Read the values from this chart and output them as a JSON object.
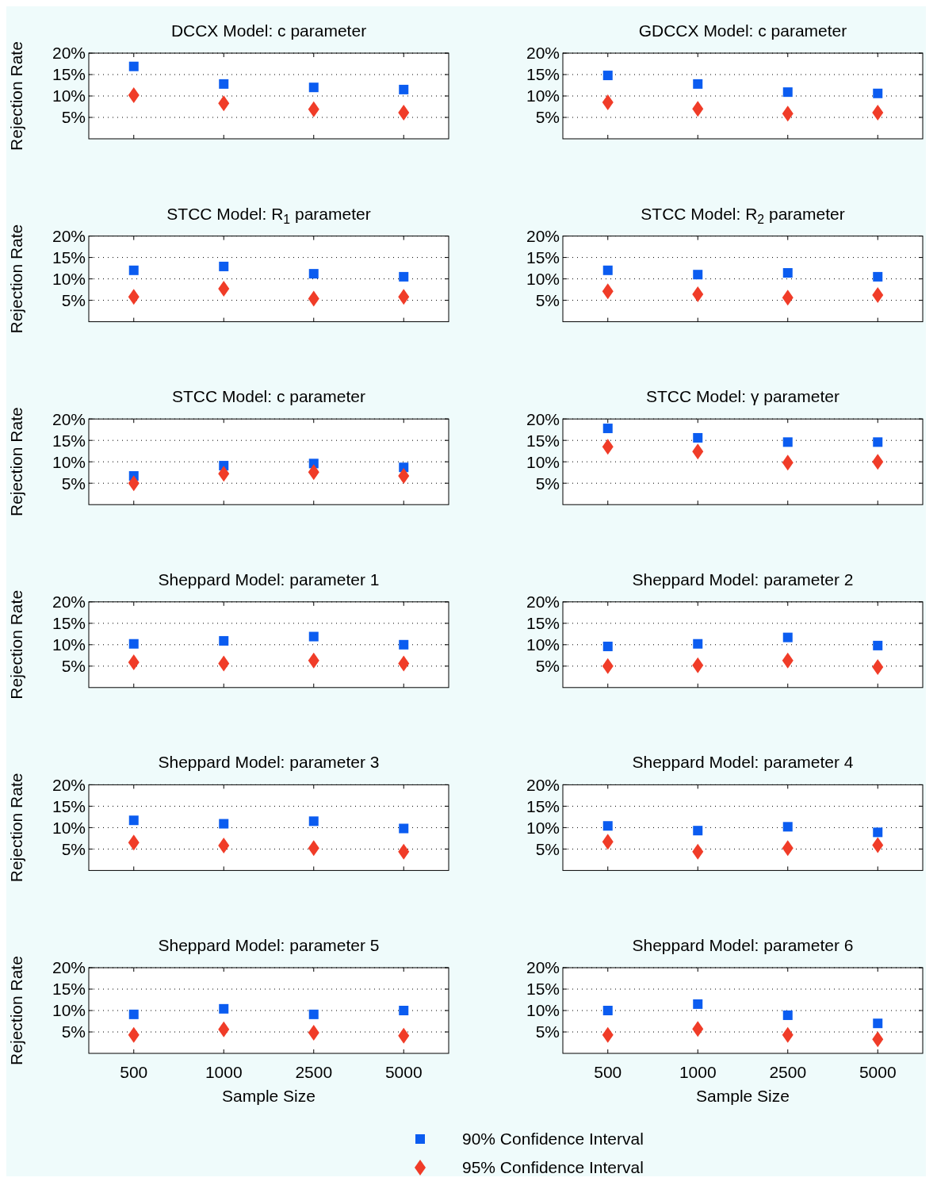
{
  "chart_data": [
    {
      "type": "scatter",
      "title": "DCCX Model: c parameter",
      "ylabel": "Rejection Rate",
      "categories": [
        "500",
        "1000",
        "2500",
        "5000"
      ],
      "ylim": [
        0,
        20
      ],
      "yticks": [
        {
          "value": 5,
          "label": "5%"
        },
        {
          "value": 10,
          "label": "10%"
        },
        {
          "value": 15,
          "label": "15%"
        },
        {
          "value": 20,
          "label": "20%"
        }
      ],
      "grid": "y",
      "tick_labels": "y",
      "legend": "bottom",
      "series": [
        {
          "name": "90% Confidence Interval",
          "color": "#0b5cf0",
          "marker": "square",
          "values": [
            16.9,
            12.8,
            12.0,
            11.5
          ]
        },
        {
          "name": "95% Confidence Interval",
          "color": "#f03c28",
          "marker": "diamond",
          "values": [
            10.2,
            8.3,
            6.9,
            6.1
          ]
        }
      ]
    },
    {
      "type": "scatter",
      "title": "GDCCX Model: c parameter",
      "categories": [
        "500",
        "1000",
        "2500",
        "5000"
      ],
      "ylim": [
        0,
        20
      ],
      "yticks": [
        {
          "value": 5,
          "label": "5%"
        },
        {
          "value": 10,
          "label": "10%"
        },
        {
          "value": 15,
          "label": "15%"
        },
        {
          "value": 20,
          "label": "20%"
        }
      ],
      "grid": "y",
      "tick_labels": "y",
      "series": [
        {
          "color": "#0b5cf0",
          "marker": "square",
          "values": [
            14.8,
            12.8,
            10.9,
            10.6
          ]
        },
        {
          "color": "#f03c28",
          "marker": "diamond",
          "values": [
            8.5,
            7.0,
            5.9,
            6.1
          ]
        }
      ]
    },
    {
      "type": "scatter",
      "title": "STCC Model: R$_{1}$ parameter",
      "ylabel": "Rejection Rate",
      "categories": [
        "500",
        "1000",
        "2500",
        "5000"
      ],
      "ylim": [
        0,
        20
      ],
      "yticks": [
        {
          "value": 5,
          "label": "5%"
        },
        {
          "value": 10,
          "label": "10%"
        },
        {
          "value": 15,
          "label": "15%"
        },
        {
          "value": 20,
          "label": "20%"
        }
      ],
      "grid": "y",
      "tick_labels": "y",
      "series": [
        {
          "color": "#0b5cf0",
          "marker": "square",
          "values": [
            12.0,
            12.9,
            11.2,
            10.5
          ]
        },
        {
          "color": "#f03c28",
          "marker": "diamond",
          "values": [
            5.8,
            7.7,
            5.4,
            5.8
          ]
        }
      ]
    },
    {
      "type": "scatter",
      "title": "STCC Model: R$_{2}$ parameter",
      "categories": [
        "500",
        "1000",
        "2500",
        "5000"
      ],
      "ylim": [
        0,
        20
      ],
      "yticks": [
        {
          "value": 5,
          "label": "5%"
        },
        {
          "value": 10,
          "label": "10%"
        },
        {
          "value": 15,
          "label": "15%"
        },
        {
          "value": 20,
          "label": "20%"
        }
      ],
      "grid": "y",
      "tick_labels": "y",
      "series": [
        {
          "color": "#0b5cf0",
          "marker": "square",
          "values": [
            12.0,
            11.0,
            11.4,
            10.5
          ]
        },
        {
          "color": "#f03c28",
          "marker": "diamond",
          "values": [
            7.1,
            6.4,
            5.6,
            6.2
          ]
        }
      ]
    },
    {
      "type": "scatter",
      "title": "STCC Model: c parameter",
      "ylabel": "Rejection Rate",
      "categories": [
        "500",
        "1000",
        "2500",
        "5000"
      ],
      "ylim": [
        0,
        20
      ],
      "yticks": [
        {
          "value": 5,
          "label": "5%"
        },
        {
          "value": 10,
          "label": "10%"
        },
        {
          "value": 15,
          "label": "15%"
        },
        {
          "value": 20,
          "label": "20%"
        }
      ],
      "grid": "y",
      "tick_labels": "y",
      "series": [
        {
          "color": "#0b5cf0",
          "marker": "square",
          "values": [
            6.7,
            9.1,
            9.6,
            8.7
          ]
        },
        {
          "color": "#f03c28",
          "marker": "diamond",
          "values": [
            5.0,
            7.2,
            7.6,
            6.7
          ]
        }
      ]
    },
    {
      "type": "scatter",
      "title": "STCC Model: γ parameter",
      "categories": [
        "500",
        "1000",
        "2500",
        "5000"
      ],
      "ylim": [
        0,
        20
      ],
      "yticks": [
        {
          "value": 5,
          "label": "5%"
        },
        {
          "value": 10,
          "label": "10%"
        },
        {
          "value": 15,
          "label": "15%"
        },
        {
          "value": 20,
          "label": "20%"
        }
      ],
      "grid": "y",
      "tick_labels": "y",
      "series": [
        {
          "color": "#0b5cf0",
          "marker": "square",
          "values": [
            17.8,
            15.6,
            14.6,
            14.6
          ]
        },
        {
          "color": "#f03c28",
          "marker": "diamond",
          "values": [
            13.5,
            12.4,
            9.8,
            10.0
          ]
        }
      ]
    },
    {
      "type": "scatter",
      "title": "Sheppard Model: parameter 1",
      "ylabel": "Rejection Rate",
      "categories": [
        "500",
        "1000",
        "2500",
        "5000"
      ],
      "ylim": [
        0,
        20
      ],
      "yticks": [
        {
          "value": 5,
          "label": "5%"
        },
        {
          "value": 10,
          "label": "10%"
        },
        {
          "value": 15,
          "label": "15%"
        },
        {
          "value": 20,
          "label": "20%"
        }
      ],
      "grid": "y",
      "tick_labels": "y",
      "series": [
        {
          "color": "#0b5cf0",
          "marker": "square",
          "values": [
            10.2,
            10.9,
            11.9,
            10.0
          ]
        },
        {
          "color": "#f03c28",
          "marker": "diamond",
          "values": [
            5.9,
            5.6,
            6.3,
            5.6
          ]
        }
      ]
    },
    {
      "type": "scatter",
      "title": "Sheppard Model: parameter 2",
      "categories": [
        "500",
        "1000",
        "2500",
        "5000"
      ],
      "ylim": [
        0,
        20
      ],
      "yticks": [
        {
          "value": 5,
          "label": "5%"
        },
        {
          "value": 10,
          "label": "10%"
        },
        {
          "value": 15,
          "label": "15%"
        },
        {
          "value": 20,
          "label": "20%"
        }
      ],
      "grid": "y",
      "tick_labels": "y",
      "series": [
        {
          "color": "#0b5cf0",
          "marker": "square",
          "values": [
            9.6,
            10.2,
            11.7,
            9.8
          ]
        },
        {
          "color": "#f03c28",
          "marker": "diamond",
          "values": [
            5.0,
            5.2,
            6.3,
            4.8
          ]
        }
      ]
    },
    {
      "type": "scatter",
      "title": "Sheppard Model: parameter 3",
      "ylabel": "Rejection Rate",
      "categories": [
        "500",
        "1000",
        "2500",
        "5000"
      ],
      "ylim": [
        0,
        20
      ],
      "yticks": [
        {
          "value": 5,
          "label": "5%"
        },
        {
          "value": 10,
          "label": "10%"
        },
        {
          "value": 15,
          "label": "15%"
        },
        {
          "value": 20,
          "label": "20%"
        }
      ],
      "grid": "y",
      "tick_labels": "y",
      "series": [
        {
          "color": "#0b5cf0",
          "marker": "square",
          "values": [
            11.7,
            10.9,
            11.5,
            9.8
          ]
        },
        {
          "color": "#f03c28",
          "marker": "diamond",
          "values": [
            6.5,
            5.8,
            5.2,
            4.4
          ]
        }
      ]
    },
    {
      "type": "scatter",
      "title": "Sheppard Model: parameter 4",
      "categories": [
        "500",
        "1000",
        "2500",
        "5000"
      ],
      "ylim": [
        0,
        20
      ],
      "yticks": [
        {
          "value": 5,
          "label": "5%"
        },
        {
          "value": 10,
          "label": "10%"
        },
        {
          "value": 15,
          "label": "15%"
        },
        {
          "value": 20,
          "label": "20%"
        }
      ],
      "grid": "y",
      "tick_labels": "y",
      "series": [
        {
          "color": "#0b5cf0",
          "marker": "square",
          "values": [
            10.4,
            9.3,
            10.2,
            8.9
          ]
        },
        {
          "color": "#f03c28",
          "marker": "diamond",
          "values": [
            6.7,
            4.4,
            5.2,
            5.9
          ]
        }
      ]
    },
    {
      "type": "scatter",
      "title": "Sheppard Model: parameter 5",
      "ylabel": "Rejection Rate",
      "xlabel": "Sample Size",
      "categories": [
        "500",
        "1000",
        "2500",
        "5000"
      ],
      "ylim": [
        0,
        20
      ],
      "yticks": [
        {
          "value": 5,
          "label": "5%"
        },
        {
          "value": 10,
          "label": "10%"
        },
        {
          "value": 15,
          "label": "15%"
        },
        {
          "value": 20,
          "label": "20%"
        }
      ],
      "grid": "y",
      "series": [
        {
          "color": "#0b5cf0",
          "marker": "square",
          "values": [
            9.1,
            10.4,
            9.1,
            10.0
          ]
        },
        {
          "color": "#f03c28",
          "marker": "diamond",
          "values": [
            4.3,
            5.6,
            4.8,
            4.1
          ]
        }
      ]
    },
    {
      "type": "scatter",
      "title": "Sheppard Model: parameter 6",
      "xlabel": "Sample Size",
      "categories": [
        "500",
        "1000",
        "2500",
        "5000"
      ],
      "ylim": [
        0,
        20
      ],
      "yticks": [
        {
          "value": 5,
          "label": "5%"
        },
        {
          "value": 10,
          "label": "10%"
        },
        {
          "value": 15,
          "label": "15%"
        },
        {
          "value": 20,
          "label": "20%"
        }
      ],
      "grid": "y",
      "series": [
        {
          "color": "#0b5cf0",
          "marker": "square",
          "values": [
            10.0,
            11.5,
            8.9,
            7.0
          ]
        },
        {
          "color": "#f03c28",
          "marker": "diamond",
          "values": [
            4.3,
            5.7,
            4.3,
            3.3
          ]
        }
      ]
    }
  ]
}
